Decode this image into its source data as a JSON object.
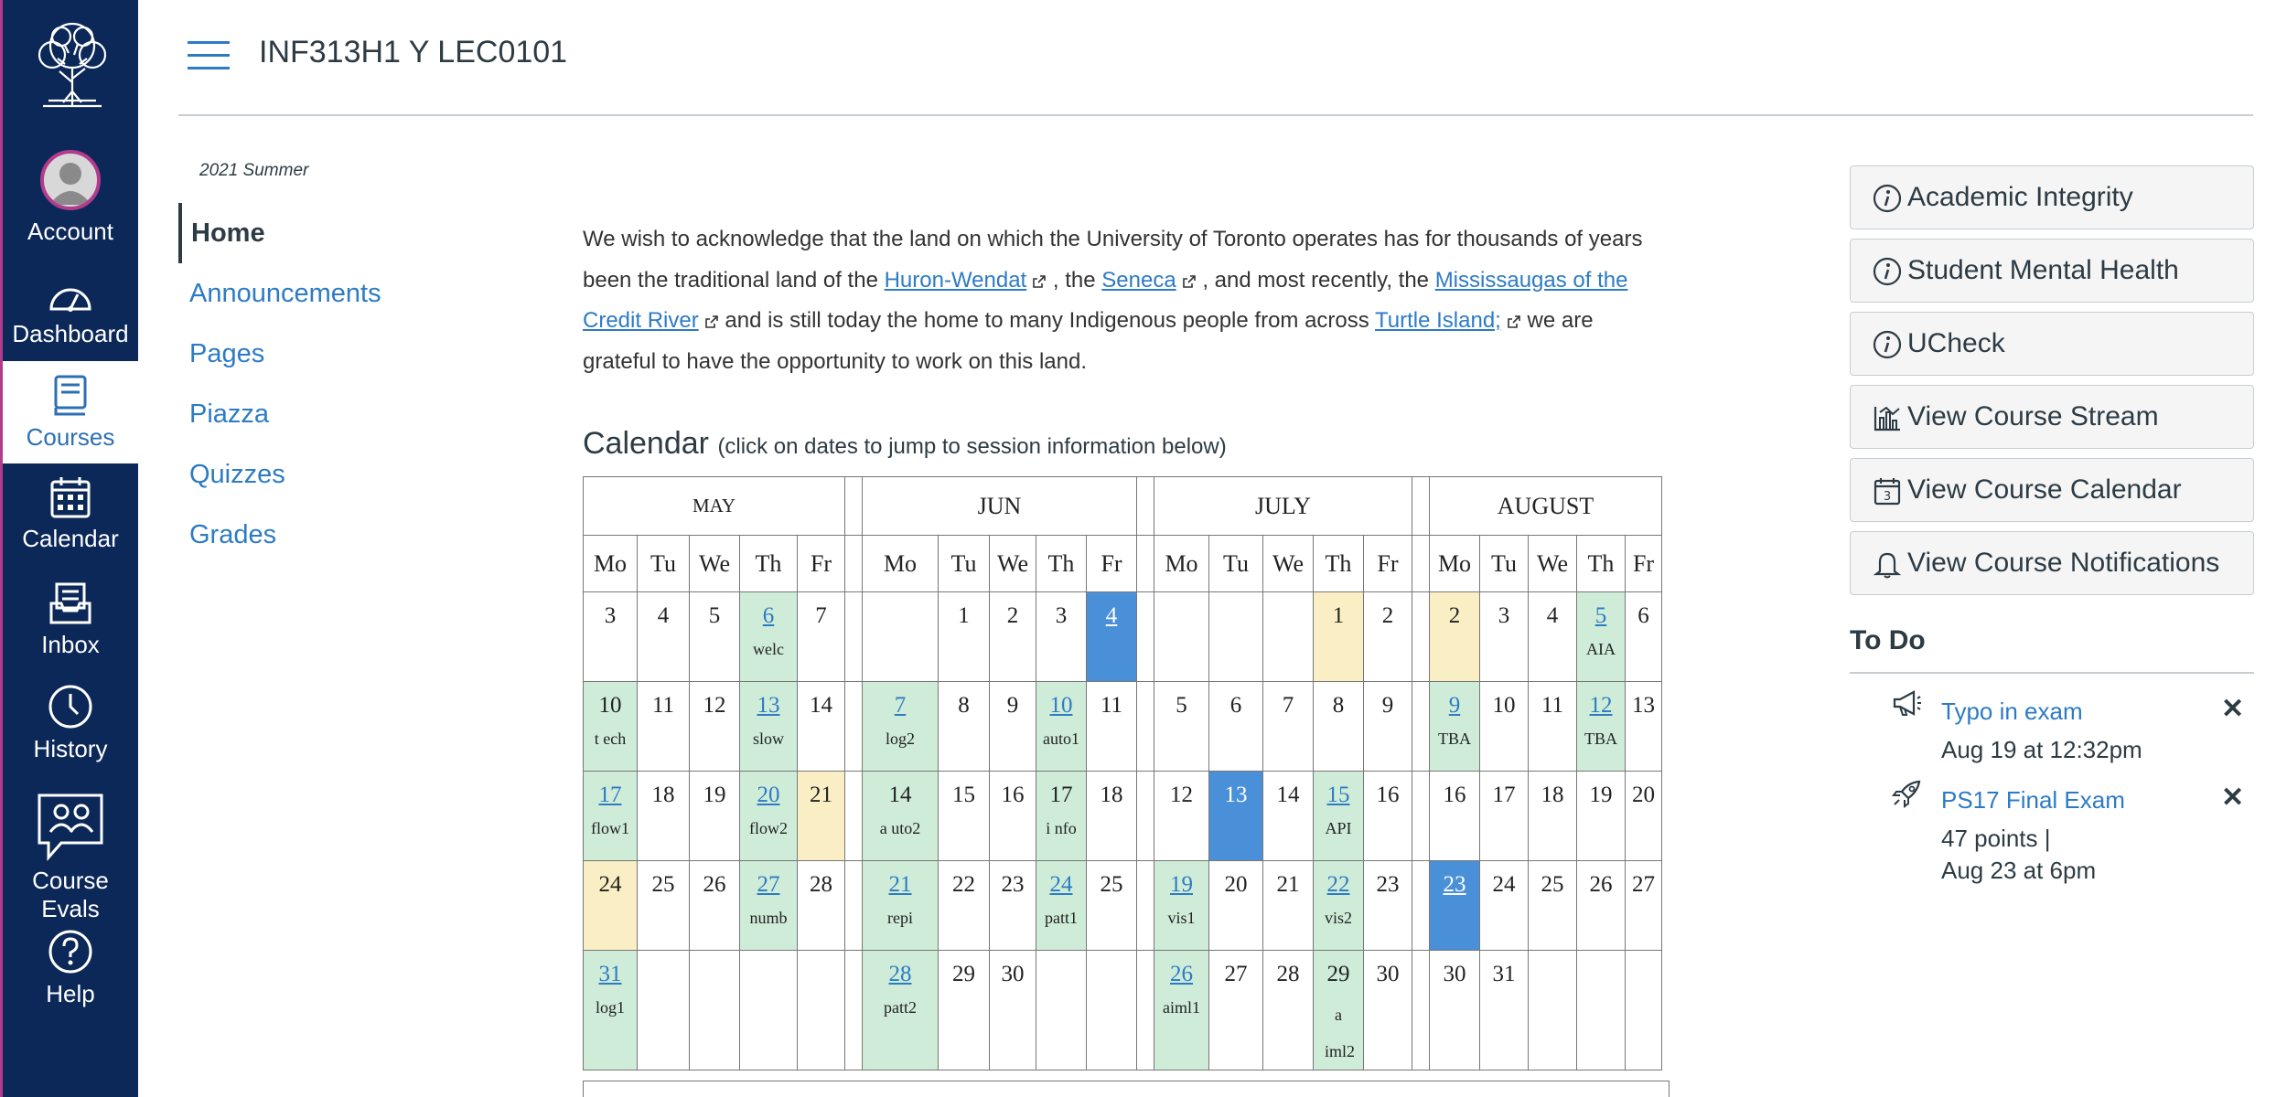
{
  "colors": {
    "nav_bg": "#0b2858",
    "nav_accent": "#b23b8c",
    "link": "#2d7bc4",
    "green": "#cfecd8",
    "yellow": "#faefc4",
    "blue": "#4a90d9"
  },
  "global_nav": {
    "account": "Account",
    "dashboard": "Dashboard",
    "courses": "Courses",
    "calendar": "Calendar",
    "inbox": "Inbox",
    "history": "History",
    "course_evals": "Course Evals",
    "help": "Help"
  },
  "header": {
    "course_title": "INF313H1 Y LEC0101"
  },
  "course_nav": {
    "term": "2021 Summer",
    "items": [
      "Home",
      "Announcements",
      "Pages",
      "Piazza",
      "Quizzes",
      "Grades"
    ],
    "active": "Home"
  },
  "acknowledgement": {
    "t1": "We wish to acknowledge that the land on which the University of Toronto operates has for thousands of years been the traditional land of the ",
    "l1": "Huron-Wendat",
    "t2": " , the ",
    "l2": "Seneca",
    "t3": " , and most recently, the ",
    "l3": "Mississaugas of the Credit River",
    "t4": "  and is still today the home to many Indigenous people from across ",
    "l4": "Turtle Island;",
    "t5": "  we are grateful to have the opportunity to work on this land."
  },
  "calendar": {
    "heading": "Calendar",
    "note": "(click on dates to jump to session information below)",
    "months": [
      "MAY",
      "JUN",
      "JULY",
      "AUGUST"
    ],
    "day_headers": [
      "Mo",
      "Tu",
      "We",
      "Th",
      "Fr"
    ],
    "weeks": [
      [
        [
          {
            "d": "3"
          },
          {
            "d": "4"
          },
          {
            "d": "5"
          },
          {
            "d": "6",
            "s": "welc",
            "c": "g",
            "l": true
          },
          {
            "d": "7"
          }
        ],
        [
          {
            "d": ""
          },
          {
            "d": "1"
          },
          {
            "d": "2"
          },
          {
            "d": "3"
          },
          {
            "d": "4",
            "c": "b",
            "l": true
          }
        ],
        [
          {
            "d": ""
          },
          {
            "d": ""
          },
          {
            "d": ""
          },
          {
            "d": "1",
            "c": "y"
          },
          {
            "d": "2"
          }
        ],
        [
          {
            "d": "2",
            "c": "y"
          },
          {
            "d": "3"
          },
          {
            "d": "4"
          },
          {
            "d": "5",
            "s": "AIA",
            "c": "g",
            "l": true
          },
          {
            "d": "6"
          }
        ]
      ],
      [
        [
          {
            "d": "10",
            "s": "t ech",
            "c": "g"
          },
          {
            "d": "11"
          },
          {
            "d": "12"
          },
          {
            "d": "13",
            "s": "slow",
            "c": "g",
            "l": true
          },
          {
            "d": "14"
          }
        ],
        [
          {
            "d": "7",
            "s": "log2",
            "c": "g",
            "l": true
          },
          {
            "d": "8"
          },
          {
            "d": "9"
          },
          {
            "d": "10",
            "s": "auto1",
            "c": "g",
            "l": true
          },
          {
            "d": "11"
          }
        ],
        [
          {
            "d": "5"
          },
          {
            "d": "6"
          },
          {
            "d": "7"
          },
          {
            "d": "8"
          },
          {
            "d": "9"
          }
        ],
        [
          {
            "d": "9",
            "s": "TBA",
            "c": "g",
            "l": true
          },
          {
            "d": "10"
          },
          {
            "d": "11"
          },
          {
            "d": "12",
            "s": "TBA",
            "c": "g",
            "l": true
          },
          {
            "d": "13"
          }
        ]
      ],
      [
        [
          {
            "d": "17",
            "s": "flow1",
            "c": "g",
            "l": true
          },
          {
            "d": "18"
          },
          {
            "d": "19"
          },
          {
            "d": "20",
            "s": "flow2",
            "c": "g",
            "l": true
          },
          {
            "d": "21",
            "c": "y"
          }
        ],
        [
          {
            "d": "14",
            "s": "a uto2",
            "c": "g"
          },
          {
            "d": "15"
          },
          {
            "d": "16"
          },
          {
            "d": "17",
            "s": "i nfo",
            "c": "g"
          },
          {
            "d": "18"
          }
        ],
        [
          {
            "d": "12"
          },
          {
            "d": "13",
            "c": "b"
          },
          {
            "d": "14"
          },
          {
            "d": "15",
            "s": "API",
            "c": "g",
            "l": true
          },
          {
            "d": "16"
          }
        ],
        [
          {
            "d": "16"
          },
          {
            "d": "17"
          },
          {
            "d": "18"
          },
          {
            "d": "19"
          },
          {
            "d": "20"
          }
        ]
      ],
      [
        [
          {
            "d": "24",
            "c": "y"
          },
          {
            "d": "25"
          },
          {
            "d": "26"
          },
          {
            "d": "27",
            "s": "numb",
            "c": "g",
            "l": true
          },
          {
            "d": "28"
          }
        ],
        [
          {
            "d": "21",
            "s": "repi",
            "c": "g",
            "l": true
          },
          {
            "d": "22"
          },
          {
            "d": "23"
          },
          {
            "d": "24",
            "s": "patt1",
            "c": "g",
            "l": true
          },
          {
            "d": "25"
          }
        ],
        [
          {
            "d": "19",
            "s": "vis1",
            "c": "g",
            "l": true
          },
          {
            "d": "20"
          },
          {
            "d": "21"
          },
          {
            "d": "22",
            "s": "vis2",
            "c": "g",
            "l": true
          },
          {
            "d": "23"
          }
        ],
        [
          {
            "d": "23",
            "c": "b",
            "l": true
          },
          {
            "d": "24"
          },
          {
            "d": "25"
          },
          {
            "d": "26"
          },
          {
            "d": "27"
          }
        ]
      ],
      [
        [
          {
            "d": "31",
            "s": "log1",
            "c": "g",
            "l": true
          },
          {
            "d": ""
          },
          {
            "d": ""
          },
          {
            "d": ""
          },
          {
            "d": ""
          }
        ],
        [
          {
            "d": "28",
            "s": "patt2",
            "c": "g",
            "l": true
          },
          {
            "d": "29"
          },
          {
            "d": "30"
          },
          {
            "d": ""
          },
          {
            "d": ""
          }
        ],
        [
          {
            "d": "26",
            "s": "aiml1",
            "c": "g",
            "l": true
          },
          {
            "d": "27"
          },
          {
            "d": "28"
          },
          {
            "d": "29",
            "s": "a iml2",
            "c": "g"
          },
          {
            "d": "30"
          }
        ],
        [
          {
            "d": "30"
          },
          {
            "d": "31"
          },
          {
            "d": ""
          },
          {
            "d": ""
          },
          {
            "d": ""
          }
        ]
      ]
    ]
  },
  "sidebar": {
    "buttons": [
      "Academic Integrity",
      "Student Mental Health",
      "UCheck",
      "View Course Stream",
      "View Course Calendar",
      "View Course Notifications"
    ],
    "todo_heading": "To Do",
    "todo": [
      {
        "title": "Typo in exam",
        "meta1": "Aug 19 at 12:32pm"
      },
      {
        "title": "PS17 Final Exam",
        "meta1": "47 points  |",
        "meta2": "Aug 23 at 6pm"
      }
    ]
  }
}
